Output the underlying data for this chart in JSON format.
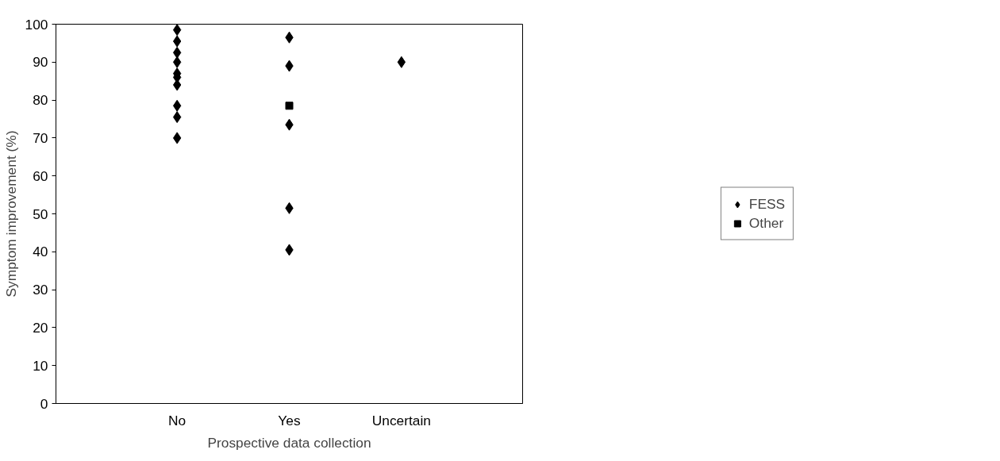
{
  "chart_data": {
    "type": "scatter",
    "xlabel": "Prospective data collection",
    "ylabel": "Symptom improvement (%)",
    "categories": [
      "No",
      "Yes",
      "Uncertain"
    ],
    "series": [
      {
        "name": "FESS",
        "color": "#000000",
        "marker": "diamond",
        "x": [
          "No",
          "No",
          "No",
          "No",
          "No",
          "No",
          "No",
          "No",
          "No",
          "No",
          "Yes",
          "Yes",
          "Yes",
          "Yes",
          "Yes",
          "Uncertain"
        ],
        "values": [
          98.5,
          95.5,
          92.5,
          90,
          87,
          86,
          84,
          78.5,
          75.5,
          70,
          96.5,
          89,
          73.5,
          51.5,
          40.5,
          90
        ]
      },
      {
        "name": "Other",
        "color": "#000000",
        "marker": "square",
        "x": [
          "Yes"
        ],
        "values": [
          78.5
        ]
      }
    ],
    "ylim": [
      0,
      100
    ],
    "yticks": [
      0,
      10,
      20,
      30,
      40,
      50,
      60,
      70,
      80,
      90,
      100
    ],
    "grid": false,
    "legend": "right"
  }
}
